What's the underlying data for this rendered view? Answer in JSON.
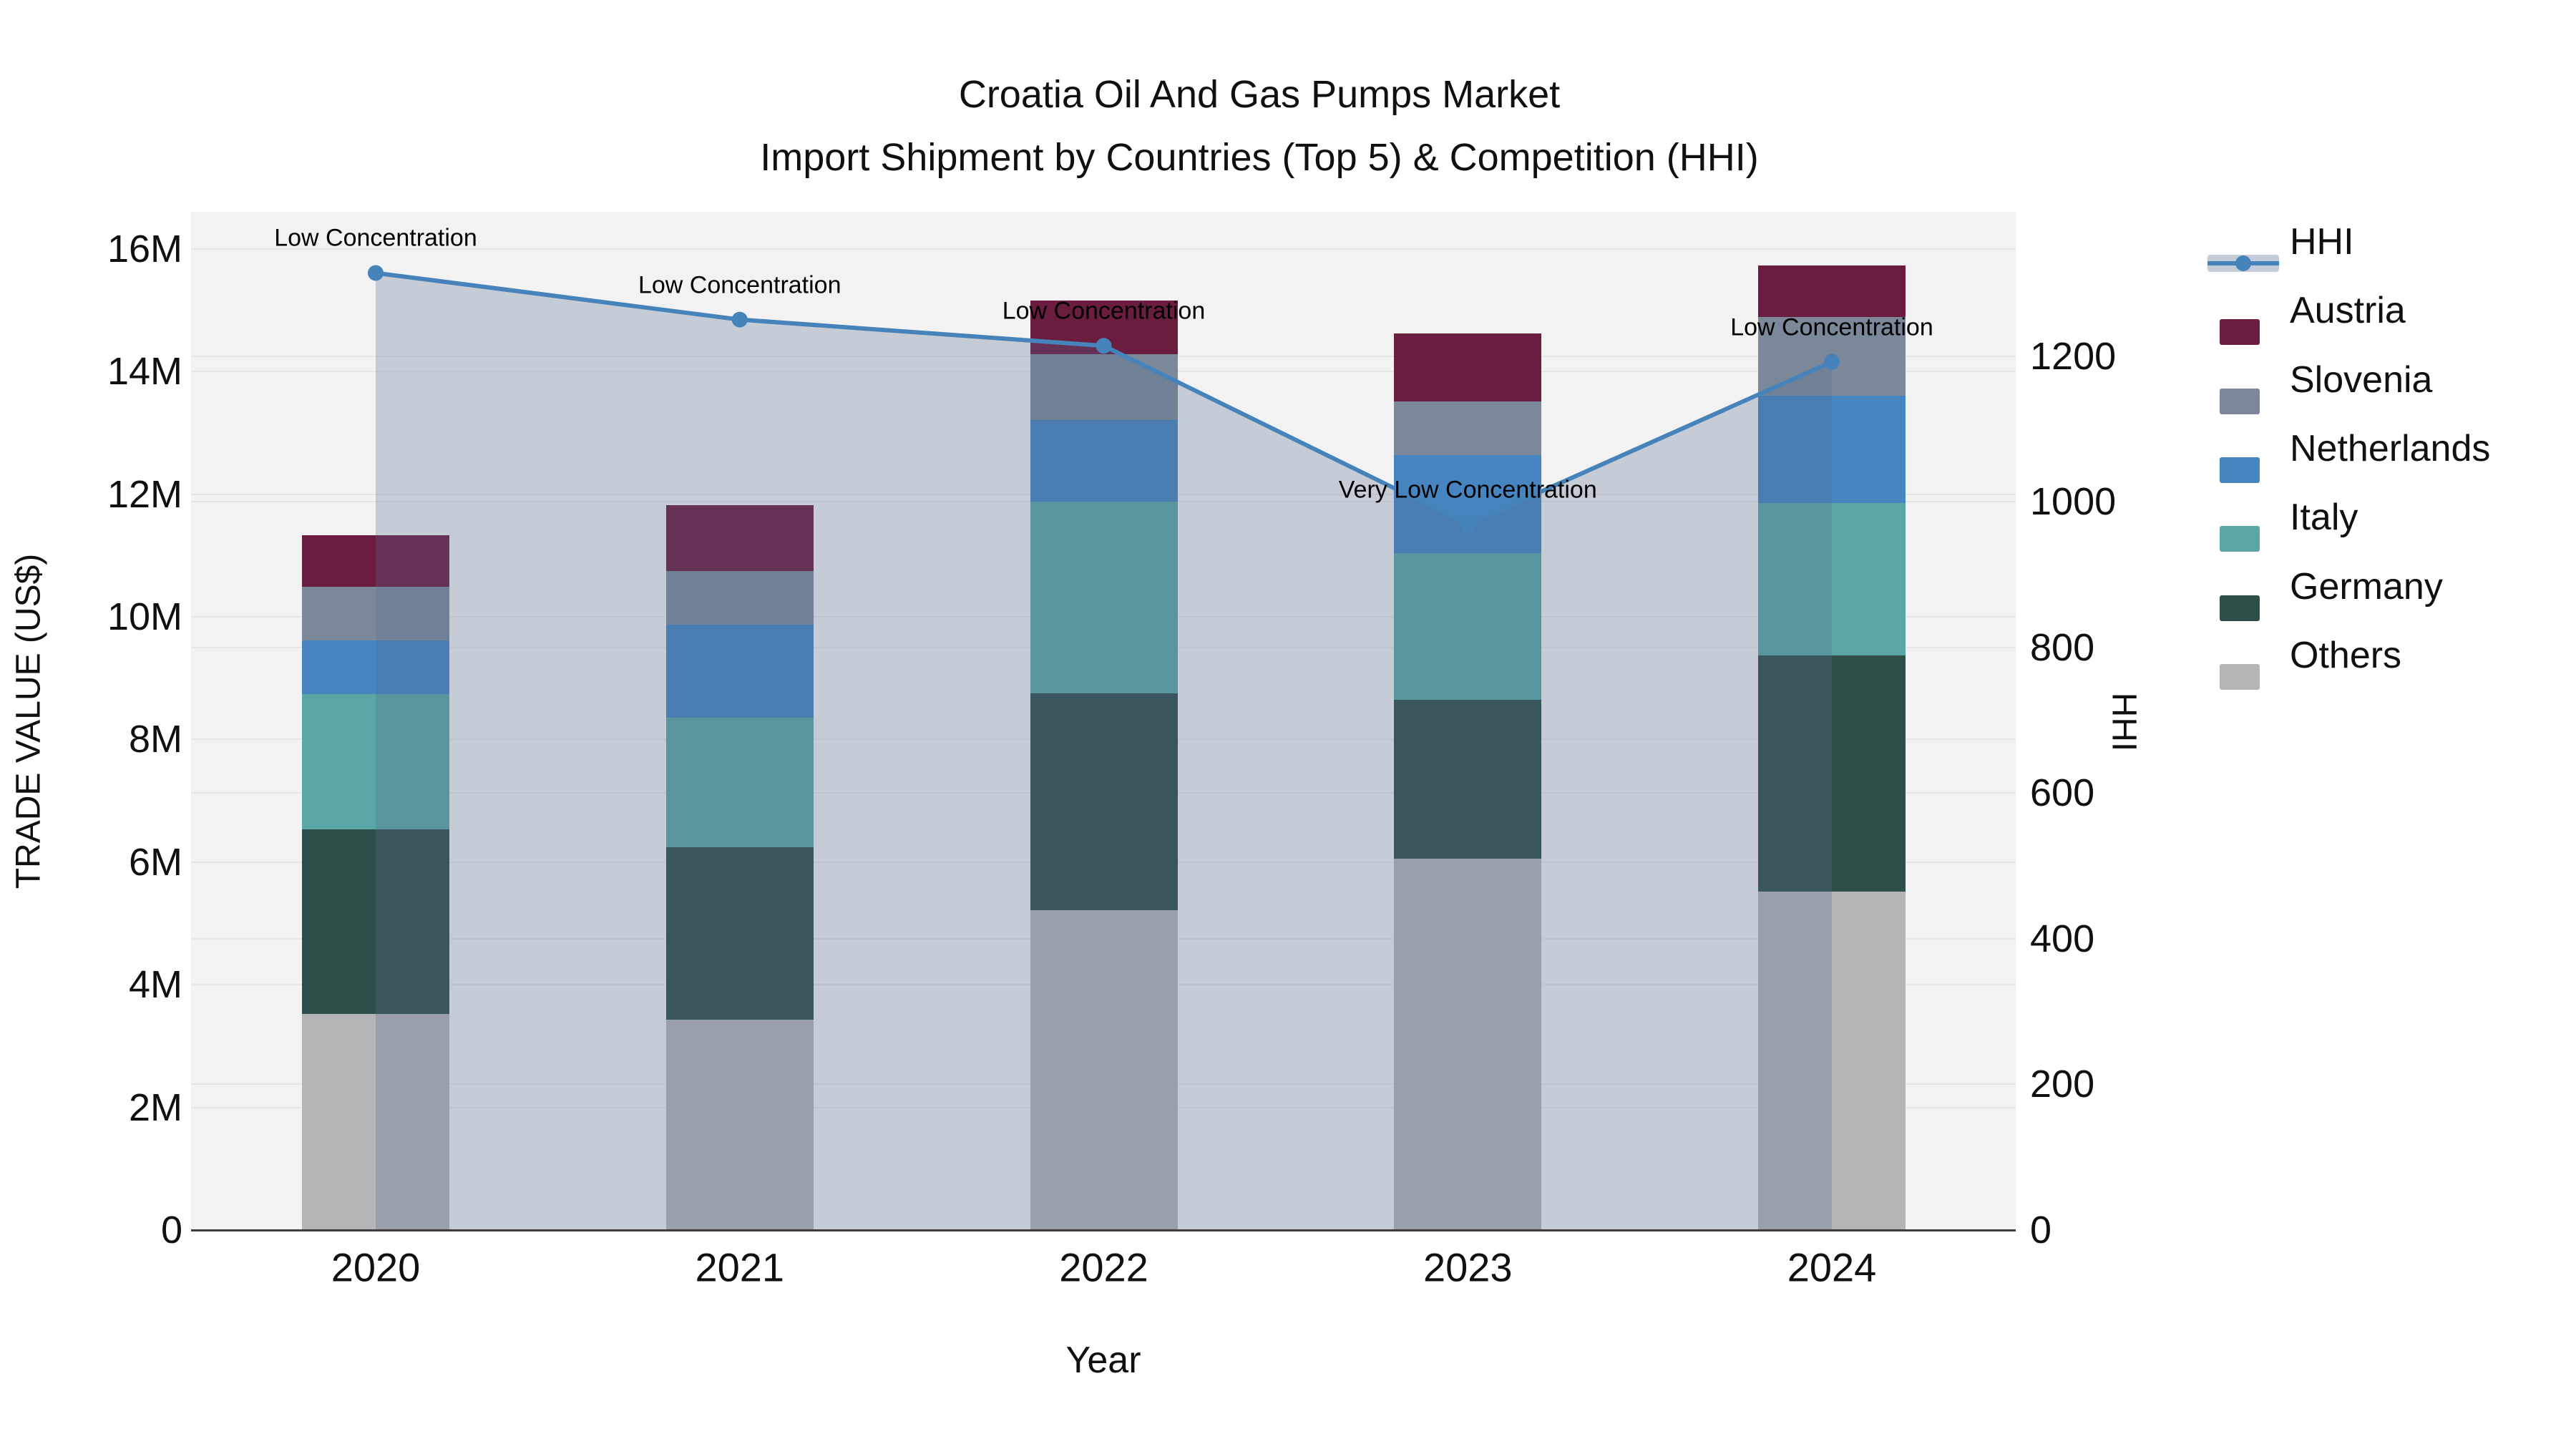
{
  "title": {
    "line1": "Croatia Oil And Gas Pumps Market",
    "line2": "Import Shipment by Countries (Top 5) & Competition (HHI)"
  },
  "axes": {
    "x": {
      "title": "Year",
      "categories": [
        "2020",
        "2021",
        "2022",
        "2023",
        "2024"
      ]
    },
    "y_left": {
      "title": "TRADE VALUE (US$)",
      "ticks": [
        {
          "label": "0",
          "value": 0
        },
        {
          "label": "2M",
          "value": 2000000
        },
        {
          "label": "4M",
          "value": 4000000
        },
        {
          "label": "6M",
          "value": 6000000
        },
        {
          "label": "8M",
          "value": 8000000
        },
        {
          "label": "10M",
          "value": 10000000
        },
        {
          "label": "12M",
          "value": 12000000
        },
        {
          "label": "14M",
          "value": 14000000
        },
        {
          "label": "16M",
          "value": 16000000
        }
      ]
    },
    "y_right": {
      "title": "HHI",
      "ticks": [
        {
          "label": "0",
          "value": 0
        },
        {
          "label": "200",
          "value": 200
        },
        {
          "label": "400",
          "value": 400
        },
        {
          "label": "600",
          "value": 600
        },
        {
          "label": "800",
          "value": 800
        },
        {
          "label": "1000",
          "value": 1000
        },
        {
          "label": "1200",
          "value": 1200
        }
      ]
    }
  },
  "legend": {
    "items": [
      {
        "label": "HHI",
        "type": "line",
        "color": "#4583ba"
      },
      {
        "label": "Austria",
        "type": "swatch",
        "color": "#6b1d40"
      },
      {
        "label": "Slovenia",
        "type": "swatch",
        "color": "#7a8899"
      },
      {
        "label": "Netherlands",
        "type": "swatch",
        "color": "#4685bf"
      },
      {
        "label": "Italy",
        "type": "swatch",
        "color": "#5aa5a5"
      },
      {
        "label": "Germany",
        "type": "swatch",
        "color": "#2e4e4a"
      },
      {
        "label": "Others",
        "type": "swatch",
        "color": "#b3b5b6"
      }
    ]
  },
  "colors": {
    "hhi_line": "#4583ba",
    "hhi_area": "rgba(86,108,145,0.28)",
    "plot_bg": "#f2f2f2",
    "gridline": "#e6e6e6",
    "axis_line": "#3f3f3f"
  },
  "chart_data": {
    "type": "combo: stacked bar (left axis) + line with markers (right axis)",
    "title": "Croatia Oil And Gas Pumps Market — Import Shipment by Countries (Top 5) & Competition (HHI)",
    "categories": [
      "2020",
      "2021",
      "2022",
      "2023",
      "2024"
    ],
    "xlabel": "Year",
    "ylabel_left": "TRADE VALUE (US$)",
    "ylabel_right": "HHI",
    "y_left_range": [
      0,
      16600000
    ],
    "y_right_range": [
      0,
      1400
    ],
    "grid": true,
    "legend_position": "right",
    "bar_stack_order_bottom_to_top": [
      "Others",
      "Germany",
      "Italy",
      "Netherlands",
      "Slovenia",
      "Austria"
    ],
    "series": [
      {
        "name": "Others",
        "color": "#b3b5b6",
        "values": [
          3520000,
          3430000,
          5220000,
          6060000,
          5520000
        ]
      },
      {
        "name": "Germany",
        "color": "#2e4e4a",
        "values": [
          3020000,
          2810000,
          3530000,
          2590000,
          3850000
        ]
      },
      {
        "name": "Italy",
        "color": "#5aa5a5",
        "values": [
          2200000,
          2110000,
          3130000,
          2390000,
          2490000
        ]
      },
      {
        "name": "Netherlands",
        "color": "#4685bf",
        "values": [
          880000,
          1520000,
          1330000,
          1600000,
          1750000
        ]
      },
      {
        "name": "Slovenia",
        "color": "#7a8899",
        "values": [
          870000,
          880000,
          1070000,
          870000,
          1280000
        ]
      },
      {
        "name": "Austria",
        "color": "#6b1d40",
        "values": [
          840000,
          1070000,
          880000,
          1110000,
          840000
        ]
      }
    ],
    "bar_totals": [
      11330000,
      11820000,
      15160000,
      14620000,
      15730000
    ],
    "line_series": {
      "name": "HHI",
      "color": "#4583ba",
      "values": [
        1314,
        1250,
        1214,
        969,
        1192
      ]
    },
    "annotations": [
      {
        "year": "2020",
        "text": "Low Concentration"
      },
      {
        "year": "2021",
        "text": "Low Concentration"
      },
      {
        "year": "2022",
        "text": "Low Concentration"
      },
      {
        "year": "2023",
        "text": "Very Low Concentration"
      },
      {
        "year": "2024",
        "text": "Low Concentration"
      }
    ]
  }
}
